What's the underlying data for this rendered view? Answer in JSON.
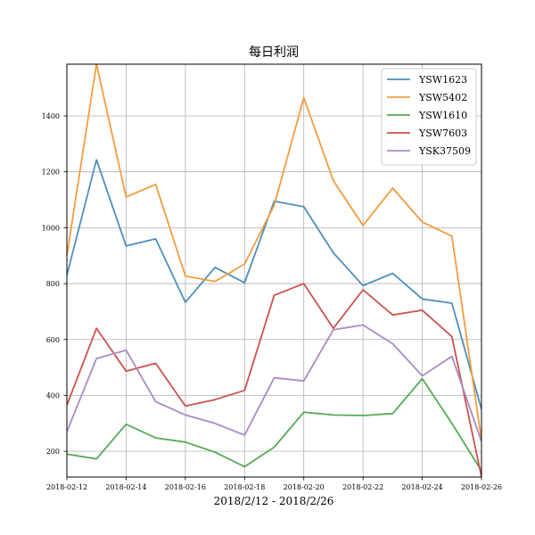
{
  "chart_data": {
    "type": "line",
    "title": "每日利润",
    "xlabel": "2018/2/12 - 2018/2/26",
    "ylabel": "",
    "x": [
      "2018-02-12",
      "2018-02-13",
      "2018-02-14",
      "2018-02-15",
      "2018-02-16",
      "2018-02-17",
      "2018-02-18",
      "2018-02-19",
      "2018-02-20",
      "2018-02-21",
      "2018-02-22",
      "2018-02-23",
      "2018-02-24",
      "2018-02-25",
      "2018-02-26"
    ],
    "xtick_labels": [
      "2018-02-12",
      "2018-02-14",
      "2018-02-16",
      "2018-02-18",
      "2018-02-20",
      "2018-02-22",
      "2018-02-24",
      "2018-02-26"
    ],
    "yticks": [
      200,
      400,
      600,
      800,
      1000,
      1200,
      1400
    ],
    "ylim": [
      108,
      1585
    ],
    "grid": true,
    "legend_position": "top-right",
    "series": [
      {
        "name": "YSW1623",
        "color": "#4c8fbd",
        "values": [
          830,
          1243,
          935,
          960,
          733,
          858,
          803,
          1095,
          1075,
          910,
          793,
          837,
          745,
          730,
          350
        ]
      },
      {
        "name": "YSW5402",
        "color": "#f39c3f",
        "values": [
          900,
          1585,
          1110,
          1155,
          827,
          808,
          870,
          1080,
          1465,
          1168,
          1008,
          1142,
          1020,
          970,
          240
        ]
      },
      {
        "name": "YSW1610",
        "color": "#55aa55",
        "values": [
          190,
          173,
          297,
          248,
          233,
          197,
          145,
          215,
          340,
          330,
          328,
          335,
          460,
          300,
          130
        ]
      },
      {
        "name": "YSW7603",
        "color": "#cc5250",
        "values": [
          365,
          640,
          487,
          515,
          362,
          385,
          418,
          758,
          800,
          640,
          778,
          688,
          705,
          610,
          108
        ]
      },
      {
        "name": "YSK37509",
        "color": "#a98bc2",
        "values": [
          270,
          532,
          562,
          378,
          330,
          300,
          258,
          463,
          452,
          635,
          652,
          585,
          470,
          540,
          235
        ]
      }
    ]
  }
}
